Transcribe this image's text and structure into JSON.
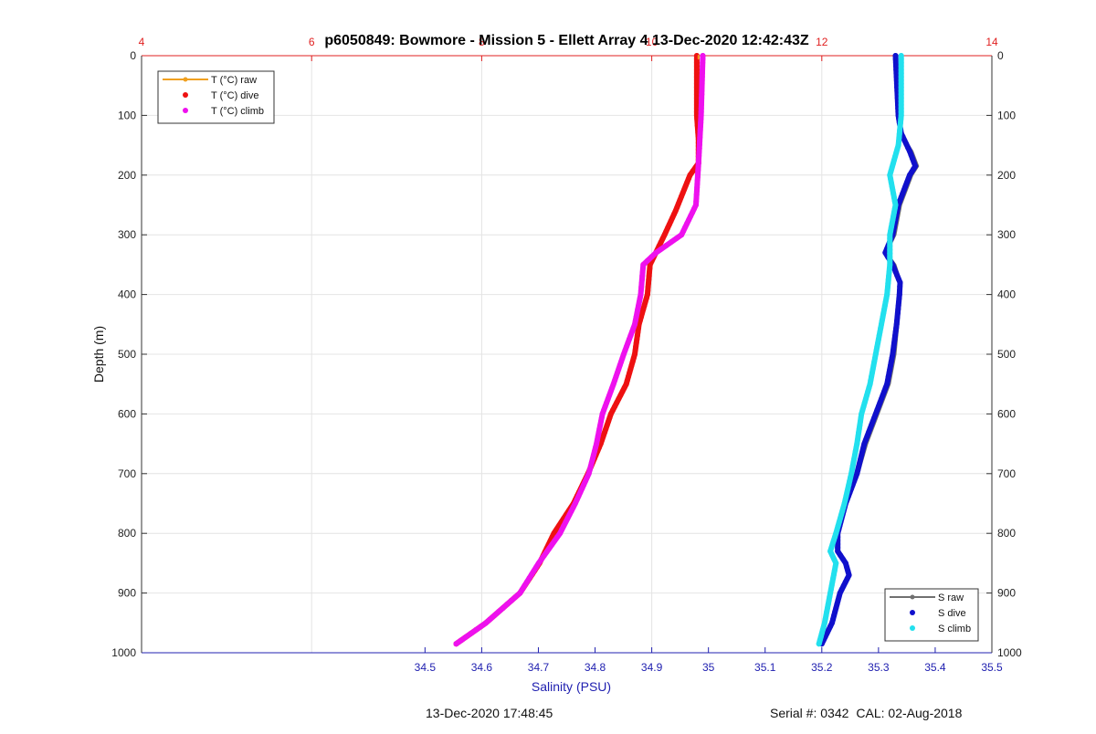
{
  "chart_data": {
    "type": "line",
    "title": "p6050849: Bowmore - Mission 5 - Ellett Array 4 13-Dec-2020 12:42:43Z",
    "ylabel": "Depth (m)",
    "xlabel": "Salinity (PSU)",
    "y_range": [
      0,
      1000
    ],
    "y_ticks": [
      "0",
      "100",
      "200",
      "300",
      "400",
      "500",
      "600",
      "700",
      "800",
      "900",
      "1000"
    ],
    "salinity_axis": {
      "range": [
        34.0,
        35.5
      ],
      "tick_labels": [
        "34.5",
        "34.6",
        "34.7",
        "34.8",
        "34.9",
        "35",
        "35.1",
        "35.2",
        "35.3",
        "35.4",
        "35.5"
      ],
      "color": "#2020b0"
    },
    "temperature_axis": {
      "range": [
        4,
        14
      ],
      "tick_labels": [
        "4",
        "6",
        "8",
        "10",
        "12",
        "14"
      ],
      "color": "#e02020"
    },
    "grid": true,
    "series": [
      {
        "name": "T (°C) dive",
        "axis": "temperature",
        "color": "#ee1111",
        "depth": [
          0,
          100,
          140,
          180,
          200,
          260,
          300,
          350,
          400,
          450,
          500,
          550,
          600,
          650,
          700,
          750,
          800,
          850,
          900,
          950,
          985
        ],
        "values": [
          10.53,
          10.53,
          10.55,
          10.55,
          10.45,
          10.28,
          10.15,
          9.98,
          9.95,
          9.85,
          9.8,
          9.7,
          9.52,
          9.4,
          9.25,
          9.08,
          8.85,
          8.68,
          8.45,
          8.05,
          7.7
        ]
      },
      {
        "name": "T (°C) climb",
        "axis": "temperature",
        "color": "#ee11ee",
        "depth": [
          0,
          100,
          180,
          250,
          300,
          330,
          350,
          400,
          450,
          500,
          550,
          600,
          650,
          700,
          750,
          800,
          850,
          900,
          950,
          985
        ],
        "values": [
          10.6,
          10.58,
          10.55,
          10.52,
          10.35,
          10.05,
          9.9,
          9.87,
          9.8,
          9.67,
          9.55,
          9.42,
          9.35,
          9.26,
          9.1,
          8.92,
          8.67,
          8.45,
          8.05,
          7.7
        ]
      },
      {
        "name": "T (°C) raw",
        "axis": "temperature",
        "color": "#f0a020",
        "depth": [
          0,
          5
        ],
        "values": [
          10.55,
          10.55
        ]
      },
      {
        "name": "S raw",
        "axis": "salinity",
        "color": "#707070",
        "depth": [
          0,
          100,
          130,
          160,
          185,
          200,
          250,
          300,
          330,
          350,
          380,
          400,
          450,
          500,
          550,
          600,
          650,
          700,
          750,
          800,
          830,
          850,
          870,
          900,
          950,
          985
        ],
        "values": [
          35.33,
          35.335,
          35.34,
          35.36,
          35.37,
          35.36,
          35.34,
          35.33,
          35.315,
          35.33,
          35.34,
          35.34,
          35.335,
          35.33,
          35.32,
          35.3,
          35.28,
          35.265,
          35.245,
          35.23,
          35.23,
          35.245,
          35.25,
          35.235,
          35.22,
          35.2
        ]
      },
      {
        "name": "S dive",
        "axis": "salinity",
        "color": "#1010cc",
        "depth": [
          0,
          100,
          130,
          160,
          185,
          200,
          250,
          300,
          330,
          350,
          380,
          400,
          450,
          500,
          550,
          600,
          650,
          700,
          750,
          800,
          830,
          850,
          870,
          900,
          950,
          985
        ],
        "values": [
          35.33,
          35.335,
          35.34,
          35.355,
          35.365,
          35.355,
          35.335,
          35.325,
          35.312,
          35.325,
          35.338,
          35.337,
          35.332,
          35.325,
          35.315,
          35.295,
          35.275,
          35.262,
          35.242,
          35.228,
          35.228,
          35.242,
          35.248,
          35.232,
          35.218,
          35.2
        ]
      },
      {
        "name": "S climb",
        "axis": "salinity",
        "color": "#22e0ee",
        "depth": [
          0,
          100,
          150,
          200,
          250,
          300,
          350,
          400,
          450,
          500,
          550,
          600,
          650,
          700,
          750,
          800,
          830,
          850,
          900,
          950,
          985
        ],
        "values": [
          35.34,
          35.34,
          35.335,
          35.32,
          35.33,
          35.32,
          35.32,
          35.315,
          35.305,
          35.295,
          35.285,
          35.27,
          35.262,
          35.252,
          35.24,
          35.225,
          35.215,
          35.225,
          35.215,
          35.205,
          35.195
        ]
      }
    ],
    "legends": [
      {
        "position": "top-left",
        "entries": [
          {
            "label": "T (°C) raw",
            "color": "#f0a020",
            "style": "line"
          },
          {
            "label": "T (°C) dive",
            "color": "#ee1111",
            "style": "dot"
          },
          {
            "label": "T (°C) climb",
            "color": "#ee11ee",
            "style": "dot"
          }
        ]
      },
      {
        "position": "bottom-right",
        "entries": [
          {
            "label": "S raw",
            "color": "#707070",
            "style": "line"
          },
          {
            "label": "S dive",
            "color": "#1010cc",
            "style": "dot"
          },
          {
            "label": "S climb",
            "color": "#22e0ee",
            "style": "dot"
          }
        ]
      }
    ]
  },
  "footer": {
    "date": "13-Dec-2020 17:48:45",
    "serial": "Serial #: 0342",
    "cal": "CAL: 02-Aug-2018"
  }
}
